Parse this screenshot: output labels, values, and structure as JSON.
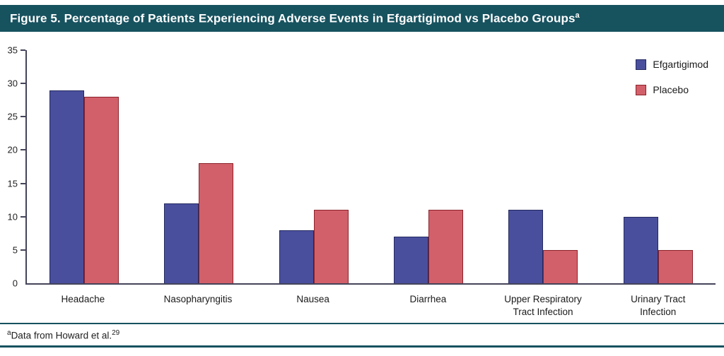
{
  "header": {
    "title": "Figure 5. Percentage of Patients Experiencing Adverse Events in Efgartigimod vs Placebo Groups",
    "title_superscript": "a"
  },
  "chart_data": {
    "type": "bar",
    "title": "Figure 5. Percentage of Patients Experiencing Adverse Events in Efgartigimod vs Placebo Groups",
    "xlabel": "",
    "ylabel": "",
    "ylim": [
      0,
      35
    ],
    "ytick_step": 5,
    "grid": false,
    "legend_position": "top-right",
    "categories": [
      "Headache",
      "Nasopharyngitis",
      "Nausea",
      "Diarrhea",
      "Upper Respiratory\nTract Infection",
      "Urinary Tract\nInfection"
    ],
    "series": [
      {
        "name": "Efgartigimod",
        "color": "#4a4f9d",
        "border_color": "#23295f",
        "values": [
          29,
          12,
          8,
          7,
          11,
          10
        ]
      },
      {
        "name": "Placebo",
        "color": "#d2606a",
        "border_color": "#8c222b",
        "values": [
          28,
          18,
          11,
          11,
          5,
          5
        ]
      }
    ]
  },
  "footnote": {
    "superscript": "a",
    "text": "Data from Howard et al.",
    "reference_superscript": "29"
  },
  "colors": {
    "header_bg": "#17525f",
    "rule": "#17525f",
    "axis": "#44445a"
  }
}
